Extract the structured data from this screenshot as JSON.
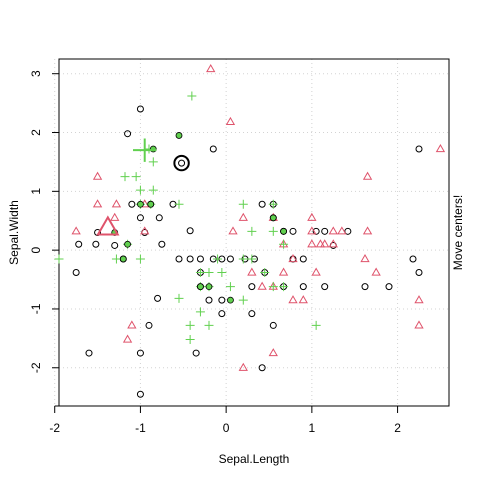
{
  "chart_data": {
    "type": "scatter",
    "xlabel": "Sepal.Length",
    "ylabel": "Sepal.Width",
    "side_label": "Move centers!",
    "xlim": [
      -1.95,
      2.6
    ],
    "ylim": [
      -2.65,
      3.25
    ],
    "xticks": [
      -2,
      -1,
      0,
      1,
      2
    ],
    "yticks": [
      -2,
      -1,
      0,
      1,
      2,
      3
    ],
    "grid": true,
    "colors": {
      "cluster1": "#000000",
      "cluster2": "#DF536B",
      "cluster3": "#61D04F"
    },
    "series": [
      {
        "marker": "circle",
        "color": "#000000",
        "points": [
          [
            -1.0,
            2.4
          ],
          [
            -0.15,
            1.72
          ],
          [
            -1.1,
            0.78
          ],
          [
            -0.88,
            0.78
          ],
          [
            -1.0,
            0.55
          ],
          [
            -0.78,
            0.55
          ],
          [
            -0.95,
            0.3
          ],
          [
            -1.5,
            0.3
          ],
          [
            -1.72,
            0.1
          ],
          [
            -1.52,
            0.1
          ],
          [
            -1.3,
            0.08
          ],
          [
            -0.75,
            0.1
          ],
          [
            -1.2,
            -0.15
          ],
          [
            -1.75,
            -0.38
          ],
          [
            -0.55,
            -0.15
          ],
          [
            -0.42,
            -0.15
          ],
          [
            -0.3,
            -0.15
          ],
          [
            -0.15,
            -0.15
          ],
          [
            -0.05,
            -0.15
          ],
          [
            0.05,
            -0.15
          ],
          [
            0.22,
            -0.15
          ],
          [
            0.33,
            -0.15
          ],
          [
            0.42,
            0.78
          ],
          [
            0.55,
            0.78
          ],
          [
            0.55,
            0.55
          ],
          [
            0.67,
            0.32
          ],
          [
            0.78,
            0.32
          ],
          [
            1.05,
            0.32
          ],
          [
            1.15,
            0.32
          ],
          [
            1.25,
            0.08
          ],
          [
            1.42,
            0.32
          ],
          [
            0.78,
            -0.15
          ],
          [
            0.9,
            -0.15
          ],
          [
            0.45,
            -0.38
          ],
          [
            0.67,
            -0.62
          ],
          [
            0.9,
            -0.62
          ],
          [
            1.15,
            -0.62
          ],
          [
            1.62,
            -0.62
          ],
          [
            1.9,
            -0.62
          ],
          [
            2.25,
            -0.38
          ],
          [
            2.18,
            -0.15
          ],
          [
            2.25,
            1.72
          ],
          [
            -0.3,
            -0.38
          ],
          [
            -0.3,
            -0.62
          ],
          [
            -0.2,
            -0.85
          ],
          [
            -0.05,
            -0.85
          ],
          [
            0.3,
            -0.62
          ],
          [
            -0.8,
            -0.82
          ],
          [
            -0.9,
            -1.28
          ],
          [
            -1.0,
            -1.75
          ],
          [
            -1.6,
            -1.75
          ],
          [
            -0.05,
            -1.08
          ],
          [
            0.3,
            -1.08
          ],
          [
            0.55,
            -1.28
          ],
          [
            0.42,
            -2.0
          ],
          [
            -1.0,
            -2.45
          ],
          [
            -0.35,
            -1.75
          ],
          [
            -0.62,
            0.78
          ],
          [
            -0.42,
            0.33
          ],
          [
            -1.15,
            1.98
          ]
        ]
      },
      {
        "marker": "triangle",
        "color": "#DF536B",
        "points": [
          [
            -0.18,
            3.08
          ],
          [
            0.05,
            2.18
          ],
          [
            -0.95,
            0.78
          ],
          [
            -1.28,
            0.78
          ],
          [
            -1.5,
            1.25
          ],
          [
            -1.5,
            0.78
          ],
          [
            -1.75,
            0.32
          ],
          [
            -1.3,
            0.55
          ],
          [
            -1.1,
            -1.28
          ],
          [
            -1.15,
            -1.52
          ],
          [
            -0.95,
            0.32
          ],
          [
            0.08,
            0.32
          ],
          [
            0.2,
            0.55
          ],
          [
            0.55,
            0.55
          ],
          [
            1.0,
            0.55
          ],
          [
            1.0,
            0.32
          ],
          [
            1.0,
            0.1
          ],
          [
            1.15,
            0.1
          ],
          [
            1.25,
            0.1
          ],
          [
            1.25,
            0.32
          ],
          [
            1.65,
            0.32
          ],
          [
            1.65,
            1.25
          ],
          [
            2.5,
            1.72
          ],
          [
            0.67,
            0.1
          ],
          [
            0.78,
            -0.15
          ],
          [
            1.05,
            -0.38
          ],
          [
            1.62,
            -0.15
          ],
          [
            1.75,
            -0.38
          ],
          [
            2.25,
            -0.85
          ],
          [
            2.25,
            -1.28
          ],
          [
            0.78,
            -0.85
          ],
          [
            0.55,
            -1.75
          ],
          [
            0.2,
            -2.0
          ],
          [
            0.3,
            -0.38
          ],
          [
            0.42,
            -0.62
          ],
          [
            0.67,
            -0.38
          ],
          [
            0.9,
            -0.85
          ],
          [
            1.1,
            0.1
          ],
          [
            1.35,
            0.32
          ],
          [
            0.55,
            -0.62
          ]
        ]
      },
      {
        "marker": "plus",
        "color": "#61D04F",
        "points": [
          [
            -0.4,
            2.62
          ],
          [
            -0.9,
            1.72
          ],
          [
            -1.18,
            1.25
          ],
          [
            -1.05,
            1.25
          ],
          [
            -1.0,
            1.02
          ],
          [
            -0.85,
            1.02
          ],
          [
            -0.85,
            1.5
          ],
          [
            -1.0,
            0.78
          ],
          [
            -0.88,
            0.78
          ],
          [
            -0.55,
            0.78
          ],
          [
            -1.15,
            0.1
          ],
          [
            -1.0,
            -0.15
          ],
          [
            -1.95,
            -0.15
          ],
          [
            -1.28,
            -0.15
          ],
          [
            -0.3,
            -0.38
          ],
          [
            -0.2,
            -0.38
          ],
          [
            -0.1,
            -0.15
          ],
          [
            0.2,
            -0.15
          ],
          [
            0.2,
            0.78
          ],
          [
            0.55,
            0.78
          ],
          [
            0.3,
            0.32
          ],
          [
            0.55,
            0.32
          ],
          [
            0.67,
            0.1
          ],
          [
            0.45,
            -0.38
          ],
          [
            -0.2,
            -0.62
          ],
          [
            -0.3,
            -0.62
          ],
          [
            0.2,
            -0.85
          ],
          [
            0.55,
            -0.62
          ],
          [
            0.67,
            -0.62
          ],
          [
            1.05,
            -1.28
          ],
          [
            -0.42,
            -1.52
          ],
          [
            -0.42,
            -1.28
          ],
          [
            -0.2,
            -1.28
          ],
          [
            -0.3,
            -1.05
          ],
          [
            -0.55,
            -0.82
          ],
          [
            0.05,
            -0.62
          ],
          [
            -0.05,
            -0.38
          ],
          [
            0.3,
            -0.15
          ]
        ]
      },
      {
        "marker": "filled-circle",
        "color": "#61D04F",
        "points": [
          [
            -0.55,
            1.95
          ],
          [
            -0.85,
            1.72
          ],
          [
            -0.88,
            0.78
          ],
          [
            -1.0,
            0.78
          ],
          [
            -1.3,
            0.3
          ],
          [
            -1.15,
            0.1
          ],
          [
            -1.2,
            -0.15
          ],
          [
            -0.2,
            -0.62
          ],
          [
            0.55,
            0.55
          ],
          [
            0.67,
            0.32
          ],
          [
            0.05,
            -0.85
          ],
          [
            -0.3,
            -0.62
          ]
        ]
      }
    ],
    "centers": [
      {
        "marker": "circle",
        "color": "#000000",
        "x": -0.52,
        "y": 1.48
      },
      {
        "marker": "triangle",
        "color": "#DF536B",
        "x": -1.38,
        "y": 0.38
      },
      {
        "marker": "plus",
        "color": "#61D04F",
        "x": -0.95,
        "y": 1.7
      }
    ]
  }
}
